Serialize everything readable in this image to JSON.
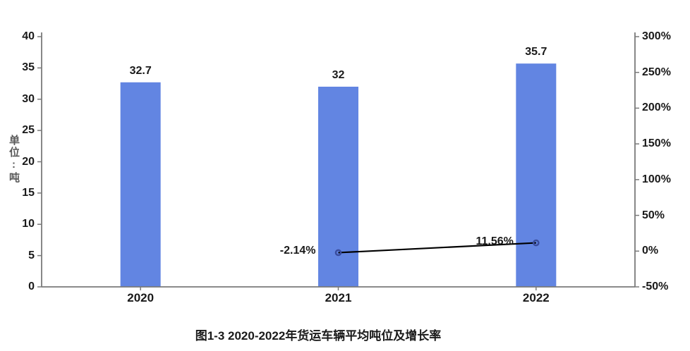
{
  "chart_data": {
    "type": "combo",
    "title": "图1-3 2020-2022年货运车辆平均吨位及增长率",
    "categories": [
      "2020",
      "2021",
      "2022"
    ],
    "series": [
      {
        "type": "bar",
        "axis": "left",
        "values": [
          32.7,
          32,
          35.7
        ],
        "data_labels": [
          "32.7",
          "32",
          "35.7"
        ],
        "color": "#6285E2"
      },
      {
        "type": "line",
        "axis": "right",
        "values": [
          null,
          -2.14,
          11.56
        ],
        "data_labels": [
          null,
          "-2.14%",
          "11.56%"
        ],
        "color": "#000000",
        "marker": "open-circle",
        "marker_color": "#3A4D9E"
      }
    ],
    "left_axis": {
      "title": "单位:吨",
      "min": 0,
      "max": 40,
      "tick_step": 5,
      "tick_labels": [
        "0",
        "5",
        "10",
        "15",
        "20",
        "25",
        "30",
        "35",
        "40"
      ]
    },
    "right_axis": {
      "min": -50,
      "max": 300,
      "tick_step": 50,
      "tick_labels": [
        "-50%",
        "0%",
        "50%",
        "100%",
        "150%",
        "200%",
        "250%",
        "300%"
      ]
    },
    "grid": false,
    "legend": "none",
    "axis_color": "#7A7A7A",
    "text_color": "#1A1A1A",
    "axis_title_color": "#595959"
  }
}
